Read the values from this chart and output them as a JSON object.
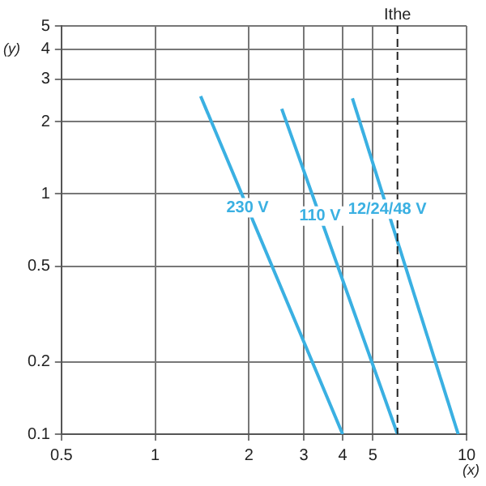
{
  "chart_data": {
    "type": "line",
    "xlabel": "(x)",
    "ylabel": "(y)",
    "log": "xy",
    "grid": true,
    "legend": false,
    "marker": "none",
    "line_style": "solid",
    "xlim": [
      0.5,
      10
    ],
    "xticks": [
      0.5,
      1,
      2,
      3,
      4,
      5,
      10
    ],
    "ylim": [
      0.1,
      5
    ],
    "yticks": [
      0.1,
      0.2,
      0.5,
      1,
      2,
      3,
      4,
      5
    ],
    "series": [
      {
        "name": "230 V",
        "color": "#3ab0e2",
        "x": [
          1.4,
          4
        ],
        "values": [
          2.55,
          0.1
        ]
      },
      {
        "name": "110 V",
        "color": "#3ab0e2",
        "x": [
          2.55,
          6
        ],
        "values": [
          2.26,
          0.1
        ]
      },
      {
        "name": "12/24/48 V",
        "color": "#3ab0e2",
        "x": [
          4.3,
          9.4
        ],
        "values": [
          2.5,
          0.1
        ]
      }
    ],
    "ref_lines": [
      {
        "axis": "x",
        "value": 6,
        "label": "Ithe",
        "line_style": "dashed",
        "color": "#222222"
      }
    ]
  }
}
